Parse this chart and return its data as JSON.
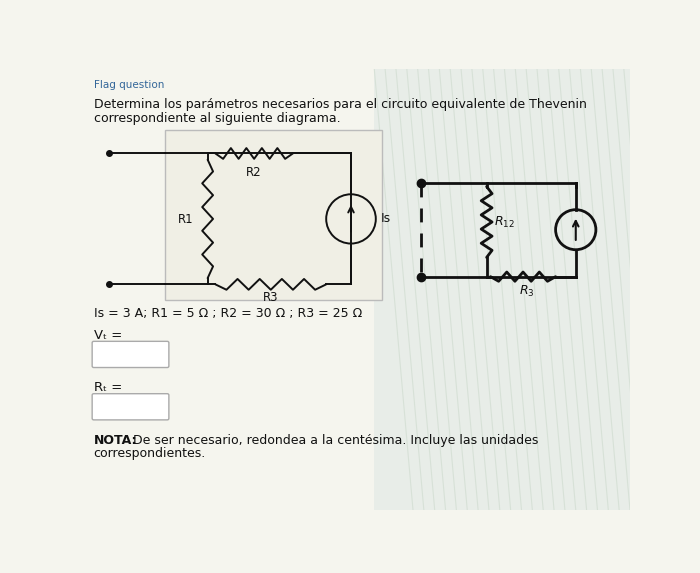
{
  "title_line1": "Determina los parámetros necesarios para el circuito equivalente de Thevenin",
  "title_line2": "correspondiente al siguiente diagrama.",
  "param_line": "Is = 3 A; R1 = 5 Ω ; R2 = 30 Ω ; R3 = 25 Ω",
  "vt_label": "Vₜ =",
  "rt_label": "Rₜ =",
  "nota_bold": "NOTA:",
  "nota_text": " De ser necesario, redondea a la centésima. Incluye las unidades\ncorrespondientes.",
  "flag_text": "Flag question",
  "bg_color": "#f5f5ee",
  "circuit_box_bg": "#f0efe5",
  "white": "#ffffff",
  "black": "#111111",
  "hatch_bg": "#e8ede8"
}
